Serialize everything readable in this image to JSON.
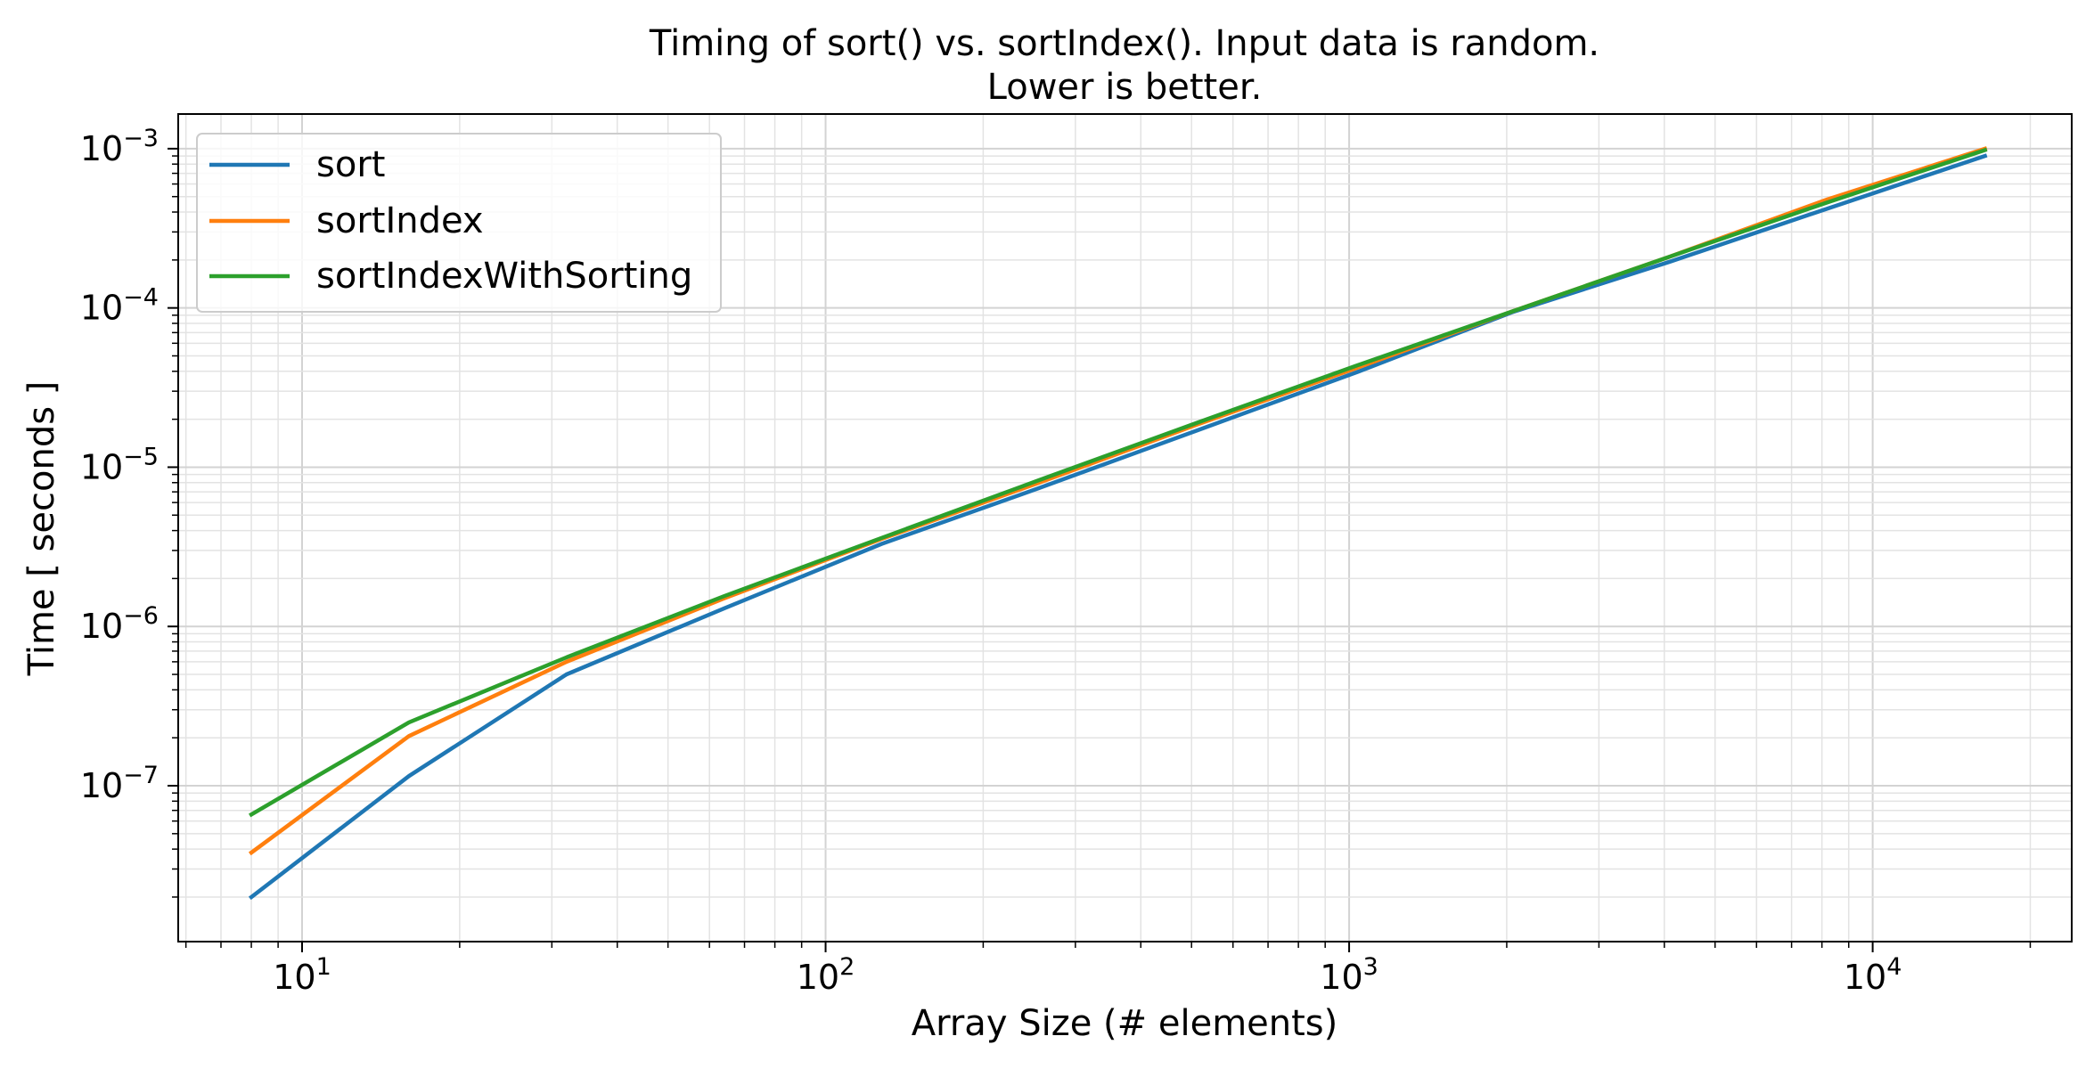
{
  "chart_data": {
    "type": "line",
    "title": [
      "Timing of sort() vs. sortIndex(). Input data is random.",
      "Lower is better."
    ],
    "xlabel": "Array Size (# elements)",
    "ylabel": "Time [ seconds ]",
    "xscale": "log",
    "yscale": "log",
    "xlim": [
      5.8,
      24000
    ],
    "ylim": [
      1.05e-08,
      0.00165
    ],
    "xticks": [
      {
        "value": 10,
        "base": "10",
        "exp": "1"
      },
      {
        "value": 100,
        "base": "10",
        "exp": "2"
      },
      {
        "value": 1000,
        "base": "10",
        "exp": "3"
      },
      {
        "value": 10000,
        "base": "10",
        "exp": "4"
      }
    ],
    "yticks": [
      {
        "value": 1e-07,
        "base": "10",
        "exp": "−7"
      },
      {
        "value": 1e-06,
        "base": "10",
        "exp": "−6"
      },
      {
        "value": 1e-05,
        "base": "10",
        "exp": "−5"
      },
      {
        "value": 0.0001,
        "base": "10",
        "exp": "−4"
      },
      {
        "value": 0.001,
        "base": "10",
        "exp": "−3"
      }
    ],
    "grid": "major and minor",
    "legend_position": "upper-left",
    "x": [
      8,
      16,
      32,
      64,
      128,
      256,
      512,
      1024,
      2048,
      4096,
      8192,
      16384
    ],
    "series": [
      {
        "name": "sort",
        "color": "#1f77b4",
        "values": [
          2e-08,
          1.15e-07,
          5e-07,
          1.3e-06,
          3.3e-06,
          7.4e-06,
          1.7e-05,
          3.9e-05,
          9.4e-05,
          0.000195,
          0.00042,
          0.0009
        ]
      },
      {
        "name": "sortIndex",
        "color": "#ff7f0e",
        "values": [
          3.8e-08,
          2.05e-07,
          6e-07,
          1.5e-06,
          3.55e-06,
          8e-06,
          1.85e-05,
          4.15e-05,
          9.5e-05,
          0.00021,
          0.00048,
          0.001
        ]
      },
      {
        "name": "sortIndexWithSorting",
        "color": "#2ca02c",
        "values": [
          6.6e-08,
          2.5e-07,
          6.4e-07,
          1.55e-06,
          3.6e-06,
          8.3e-06,
          1.9e-05,
          4.3e-05,
          9.5e-05,
          0.00021,
          0.00046,
          0.00098
        ]
      }
    ]
  }
}
